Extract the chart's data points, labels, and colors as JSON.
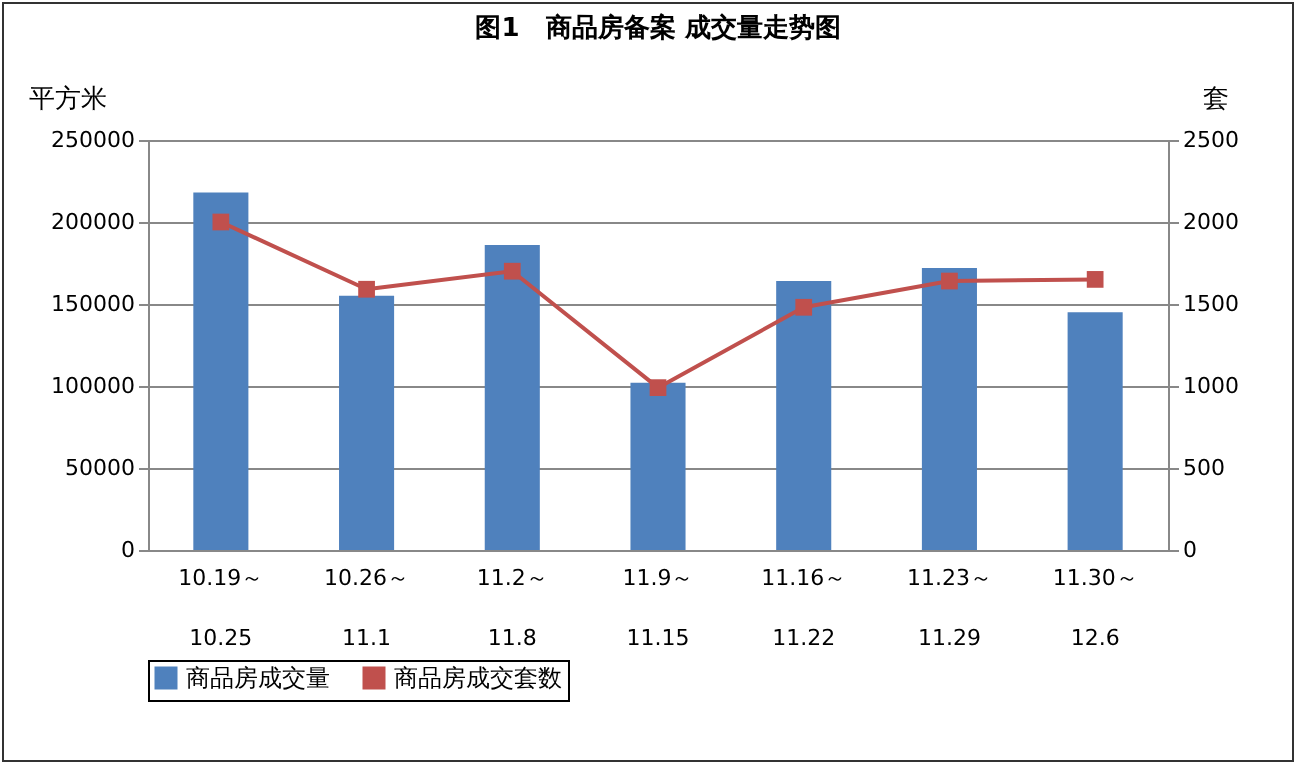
{
  "chart_data": {
    "type": "bar",
    "title": "图1　商品房备案 成交量走势图",
    "ylabel": "平方米",
    "y2label": "套",
    "categories": [
      "10.19～\n10.25",
      "10.26～\n11.1",
      "11.2～\n11.8",
      "11.9～\n11.15",
      "11.16～\n11.22",
      "11.23～\n11.29",
      "11.30～\n12.6"
    ],
    "series": [
      {
        "name": "商品房成交量",
        "color": "#4f81bd",
        "values": [
          218000,
          155000,
          186000,
          102000,
          164000,
          172000,
          145000
        ]
      },
      {
        "name": "商品房成交套数",
        "color": "#c0504d",
        "type": "line",
        "axis": "y2",
        "marker": "square",
        "values": [
          2000,
          1590,
          1700,
          990,
          1480,
          1640,
          1650
        ]
      }
    ],
    "ylim": [
      0,
      250000
    ],
    "yticks": [
      0,
      50000,
      100000,
      150000,
      200000,
      250000
    ],
    "y2lim": [
      0,
      2500
    ],
    "y2ticks": [
      0,
      500,
      1000,
      1500,
      2000,
      2500
    ],
    "grid": "y",
    "legend": "bottom"
  }
}
